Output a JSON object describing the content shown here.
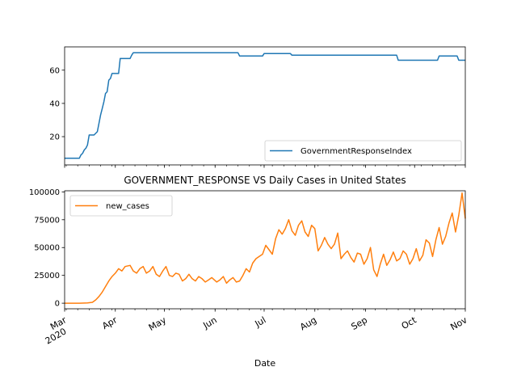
{
  "chart_data": [
    {
      "type": "line",
      "title": "",
      "xlabel": "",
      "ylabel": "",
      "ylim": [
        3,
        74
      ],
      "x_range": [
        "2020-03-01",
        "2020-11-01"
      ],
      "yticks": [
        "20",
        "40",
        "60"
      ],
      "grid": false,
      "legend_position": "lower-right",
      "series": [
        {
          "name": "GovernmentResponseIndex",
          "color": "#1f77b4",
          "points": [
            [
              "2020-03-01",
              7
            ],
            [
              "2020-03-10",
              7
            ],
            [
              "2020-03-11",
              9
            ],
            [
              "2020-03-12",
              10
            ],
            [
              "2020-03-13",
              12
            ],
            [
              "2020-03-14",
              13
            ],
            [
              "2020-03-15",
              15
            ],
            [
              "2020-03-16",
              21
            ],
            [
              "2020-03-19",
              21
            ],
            [
              "2020-03-20",
              22
            ],
            [
              "2020-03-21",
              23
            ],
            [
              "2020-03-22",
              28
            ],
            [
              "2020-03-23",
              33
            ],
            [
              "2020-03-24",
              37
            ],
            [
              "2020-03-25",
              41
            ],
            [
              "2020-03-26",
              46
            ],
            [
              "2020-03-27",
              47
            ],
            [
              "2020-03-28",
              54
            ],
            [
              "2020-03-29",
              55
            ],
            [
              "2020-03-30",
              58
            ],
            [
              "2020-04-03",
              58
            ],
            [
              "2020-04-04",
              67
            ],
            [
              "2020-04-10",
              67
            ],
            [
              "2020-04-11",
              69
            ],
            [
              "2020-04-12",
              70.5
            ],
            [
              "2020-06-15",
              70.5
            ],
            [
              "2020-06-16",
              68.5
            ],
            [
              "2020-06-30",
              68.5
            ],
            [
              "2020-07-01",
              70
            ],
            [
              "2020-07-17",
              70
            ],
            [
              "2020-07-18",
              69
            ],
            [
              "2020-09-20",
              69
            ],
            [
              "2020-09-21",
              66
            ],
            [
              "2020-10-15",
              66
            ],
            [
              "2020-10-16",
              68.5
            ],
            [
              "2020-10-27",
              68.5
            ],
            [
              "2020-10-28",
              66
            ],
            [
              "2020-11-01",
              66
            ]
          ]
        }
      ]
    },
    {
      "type": "line",
      "title": "GOVERNMENT_RESPONSE VS Daily Cases in United States",
      "xlabel": "Date",
      "ylabel": "",
      "ylim": [
        -5000,
        101000
      ],
      "x_range": [
        "2020-03-01",
        "2020-11-01"
      ],
      "yticks": [
        "0",
        "25000",
        "50000",
        "75000",
        "100000"
      ],
      "xticks": [
        {
          "date": "2020-03-01",
          "label": "Mar",
          "sublabel": "2020"
        },
        {
          "date": "2020-04-01",
          "label": "Apr",
          "sublabel": ""
        },
        {
          "date": "2020-05-01",
          "label": "May",
          "sublabel": ""
        },
        {
          "date": "2020-06-01",
          "label": "Jun",
          "sublabel": ""
        },
        {
          "date": "2020-07-01",
          "label": "Jul",
          "sublabel": ""
        },
        {
          "date": "2020-08-01",
          "label": "Aug",
          "sublabel": ""
        },
        {
          "date": "2020-09-01",
          "label": "Sep",
          "sublabel": ""
        },
        {
          "date": "2020-10-01",
          "label": "Oct",
          "sublabel": ""
        },
        {
          "date": "2020-11-01",
          "label": "Nov",
          "sublabel": ""
        }
      ],
      "grid": false,
      "legend_position": "upper-left",
      "series": [
        {
          "name": "new_cases",
          "color": "#ff7f0e",
          "points": [
            [
              "2020-03-01",
              0
            ],
            [
              "2020-03-10",
              0
            ],
            [
              "2020-03-15",
              200
            ],
            [
              "2020-03-18",
              800
            ],
            [
              "2020-03-20",
              3000
            ],
            [
              "2020-03-22",
              6000
            ],
            [
              "2020-03-24",
              10000
            ],
            [
              "2020-03-26",
              15000
            ],
            [
              "2020-03-28",
              20000
            ],
            [
              "2020-03-30",
              24000
            ],
            [
              "2020-04-01",
              27000
            ],
            [
              "2020-04-03",
              31000
            ],
            [
              "2020-04-05",
              29000
            ],
            [
              "2020-04-07",
              33000
            ],
            [
              "2020-04-10",
              34000
            ],
            [
              "2020-04-12",
              29000
            ],
            [
              "2020-04-14",
              27000
            ],
            [
              "2020-04-16",
              31000
            ],
            [
              "2020-04-18",
              33000
            ],
            [
              "2020-04-20",
              27000
            ],
            [
              "2020-04-22",
              29000
            ],
            [
              "2020-04-24",
              33000
            ],
            [
              "2020-04-26",
              26000
            ],
            [
              "2020-04-28",
              24000
            ],
            [
              "2020-04-30",
              29000
            ],
            [
              "2020-05-02",
              33000
            ],
            [
              "2020-05-04",
              25000
            ],
            [
              "2020-05-06",
              24000
            ],
            [
              "2020-05-08",
              27000
            ],
            [
              "2020-05-10",
              26000
            ],
            [
              "2020-05-12",
              20000
            ],
            [
              "2020-05-14",
              22000
            ],
            [
              "2020-05-16",
              26000
            ],
            [
              "2020-05-18",
              22000
            ],
            [
              "2020-05-20",
              20000
            ],
            [
              "2020-05-22",
              24000
            ],
            [
              "2020-05-24",
              22000
            ],
            [
              "2020-05-26",
              19000
            ],
            [
              "2020-05-28",
              21000
            ],
            [
              "2020-05-30",
              23000
            ],
            [
              "2020-06-02",
              19000
            ],
            [
              "2020-06-04",
              21000
            ],
            [
              "2020-06-06",
              24000
            ],
            [
              "2020-06-08",
              18000
            ],
            [
              "2020-06-10",
              21000
            ],
            [
              "2020-06-12",
              23000
            ],
            [
              "2020-06-14",
              19000
            ],
            [
              "2020-06-16",
              20000
            ],
            [
              "2020-06-18",
              25000
            ],
            [
              "2020-06-20",
              31000
            ],
            [
              "2020-06-22",
              28000
            ],
            [
              "2020-06-24",
              36000
            ],
            [
              "2020-06-26",
              40000
            ],
            [
              "2020-06-28",
              42000
            ],
            [
              "2020-06-30",
              44000
            ],
            [
              "2020-07-02",
              52000
            ],
            [
              "2020-07-04",
              48000
            ],
            [
              "2020-07-06",
              44000
            ],
            [
              "2020-07-08",
              58000
            ],
            [
              "2020-07-10",
              66000
            ],
            [
              "2020-07-12",
              62000
            ],
            [
              "2020-07-14",
              67000
            ],
            [
              "2020-07-16",
              75000
            ],
            [
              "2020-07-18",
              65000
            ],
            [
              "2020-07-20",
              61000
            ],
            [
              "2020-07-22",
              70000
            ],
            [
              "2020-07-24",
              74000
            ],
            [
              "2020-07-26",
              64000
            ],
            [
              "2020-07-28",
              60000
            ],
            [
              "2020-07-30",
              70000
            ],
            [
              "2020-08-01",
              67000
            ],
            [
              "2020-08-03",
              47000
            ],
            [
              "2020-08-05",
              52000
            ],
            [
              "2020-08-07",
              59000
            ],
            [
              "2020-08-09",
              53000
            ],
            [
              "2020-08-11",
              49000
            ],
            [
              "2020-08-13",
              53000
            ],
            [
              "2020-08-15",
              63000
            ],
            [
              "2020-08-17",
              40000
            ],
            [
              "2020-08-19",
              44000
            ],
            [
              "2020-08-21",
              47000
            ],
            [
              "2020-08-23",
              41000
            ],
            [
              "2020-08-25",
              37000
            ],
            [
              "2020-08-27",
              45000
            ],
            [
              "2020-08-29",
              44000
            ],
            [
              "2020-08-31",
              35000
            ],
            [
              "2020-09-02",
              40000
            ],
            [
              "2020-09-04",
              50000
            ],
            [
              "2020-09-06",
              30000
            ],
            [
              "2020-09-08",
              24000
            ],
            [
              "2020-09-10",
              35000
            ],
            [
              "2020-09-12",
              44000
            ],
            [
              "2020-09-14",
              34000
            ],
            [
              "2020-09-16",
              39000
            ],
            [
              "2020-09-18",
              46000
            ],
            [
              "2020-09-20",
              38000
            ],
            [
              "2020-09-22",
              40000
            ],
            [
              "2020-09-24",
              47000
            ],
            [
              "2020-09-26",
              44000
            ],
            [
              "2020-09-28",
              35000
            ],
            [
              "2020-09-30",
              40000
            ],
            [
              "2020-10-02",
              49000
            ],
            [
              "2020-10-04",
              38000
            ],
            [
              "2020-10-06",
              43000
            ],
            [
              "2020-10-08",
              57000
            ],
            [
              "2020-10-10",
              54000
            ],
            [
              "2020-10-12",
              42000
            ],
            [
              "2020-10-14",
              57000
            ],
            [
              "2020-10-16",
              68000
            ],
            [
              "2020-10-18",
              53000
            ],
            [
              "2020-10-20",
              60000
            ],
            [
              "2020-10-22",
              72000
            ],
            [
              "2020-10-24",
              81000
            ],
            [
              "2020-10-26",
              64000
            ],
            [
              "2020-10-28",
              79000
            ],
            [
              "2020-10-30",
              99000
            ],
            [
              "2020-11-01",
              76000
            ]
          ]
        }
      ]
    }
  ]
}
